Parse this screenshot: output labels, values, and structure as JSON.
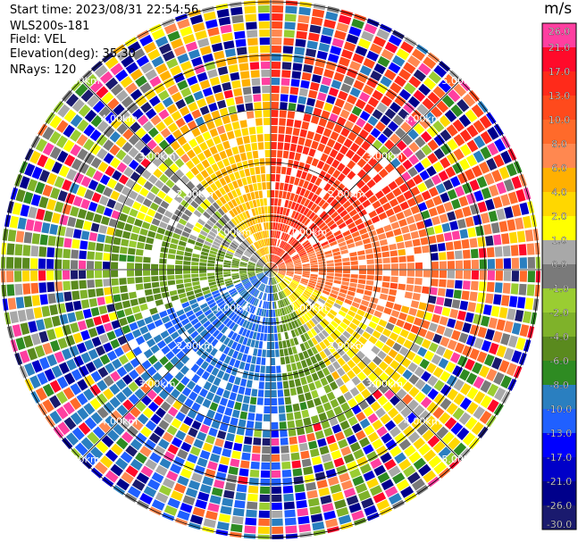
{
  "header": {
    "start_time": "Start time: 2023/08/31 22:54:56",
    "instrument": "WLS200s-181",
    "field": "Field: VEL",
    "elevation": "Elevation(deg): 35.30",
    "nrays": "NRays: 120"
  },
  "colorbar": {
    "units": "m/s",
    "ticks": [
      "26.0",
      "21.0",
      "17.0",
      "13.0",
      "10.0",
      "8.0",
      "6.0",
      "4.0",
      "2.0",
      "1.0",
      "0.0",
      "-1.0",
      "-2.0",
      "-4.0",
      "-6.0",
      "-8.0",
      "-10.0",
      "-13.0",
      "-17.0",
      "-21.0",
      "-26.0",
      "-30.0"
    ],
    "colors": [
      "#ff3fa0",
      "#ff0a2a",
      "#ff2a1a",
      "#ff4a1c",
      "#ff6a2a",
      "#ff8850",
      "#ffb000",
      "#ffd700",
      "#ffff00",
      "#a8a8a8",
      "#7a7a7a",
      "#9acd32",
      "#7fb22a",
      "#5a8a1e",
      "#2e8b22",
      "#2a7fc0",
      "#2060ff",
      "#0000ff",
      "#0000c8",
      "#00008b",
      "#1a1a6e"
    ]
  },
  "range_labels": [
    "1.00km",
    "2.00km",
    "3.00km",
    "4.00km",
    "5.00km"
  ],
  "chart_data": {
    "type": "heatmap",
    "field": "VEL",
    "nrays": 120,
    "rings_km": [
      1,
      2,
      3,
      4,
      5
    ],
    "azimuth_sectors": [
      {
        "from_deg": 0,
        "to_deg": 65,
        "velocity": 13
      },
      {
        "from_deg": 65,
        "to_deg": 115,
        "velocity": 8
      },
      {
        "from_deg": 115,
        "to_deg": 150,
        "velocity": 2
      },
      {
        "from_deg": 150,
        "to_deg": 175,
        "velocity": -4
      },
      {
        "from_deg": 175,
        "to_deg": 250,
        "velocity": -10
      },
      {
        "from_deg": 250,
        "to_deg": 290,
        "velocity": -4
      },
      {
        "from_deg": 290,
        "to_deg": 320,
        "velocity": 0
      },
      {
        "from_deg": 320,
        "to_deg": 360,
        "velocity": 4
      }
    ],
    "clean_range_km": 3.0
  }
}
